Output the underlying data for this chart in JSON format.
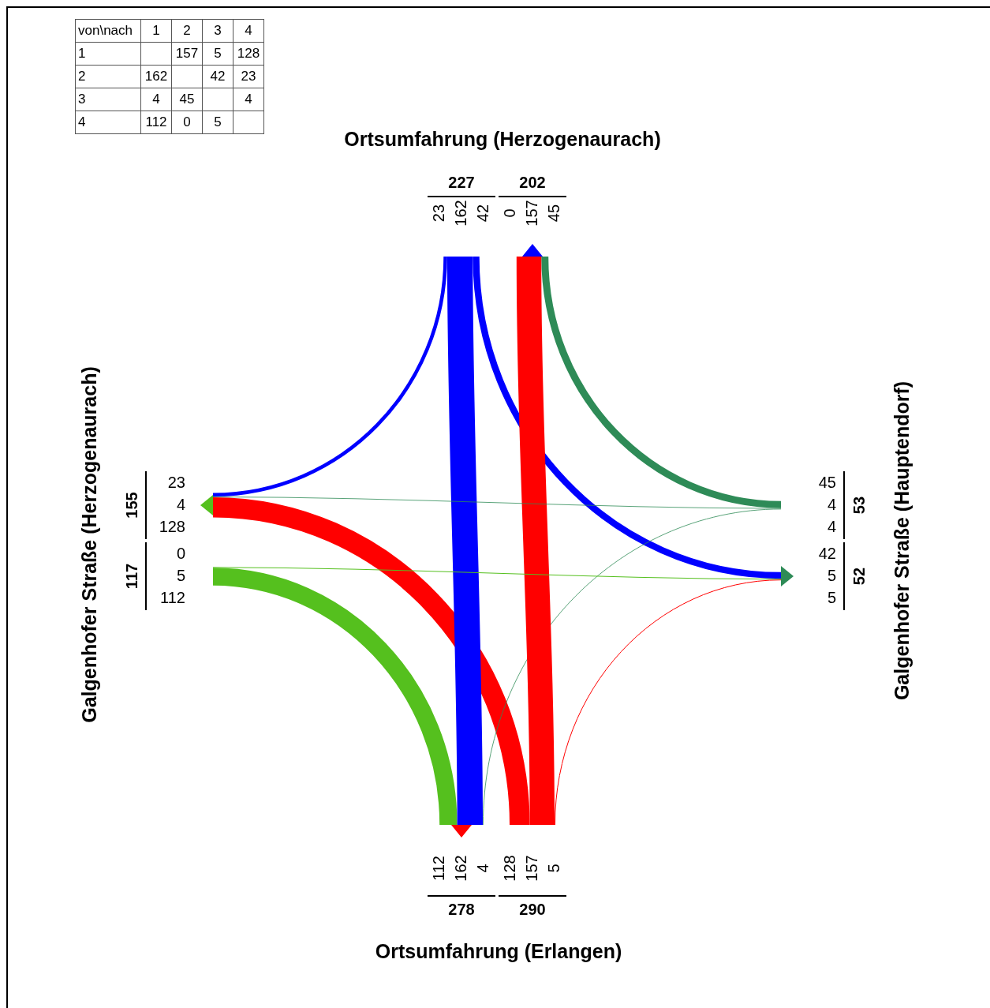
{
  "chart_data": [
    {
      "type": "heatmap",
      "annotations": [
        "von\\nach"
      ],
      "categories": [
        "1",
        "2",
        "3",
        "4"
      ],
      "y_categories": [
        "1",
        "2",
        "3",
        "4"
      ],
      "cells": [
        [
          null,
          157,
          5,
          128
        ],
        [
          162,
          null,
          42,
          23
        ],
        [
          4,
          45,
          null,
          4
        ],
        [
          112,
          0,
          5,
          null
        ]
      ],
      "colors": [
        "#ff0000",
        "#0000ff",
        "#2e8b57",
        "#55c01e"
      ],
      "data_labels": true
    },
    {
      "type": "other",
      "annotations": [
        "Ortsumfahrung (Erlangen)",
        "Ortsumfahrung (Herzogenaurach)",
        "Galgenhofer Straße (Hauptendorf)",
        "Galgenhofer Straße (Herzogenaurach)",
        "5",
        "157",
        "128",
        "112",
        "162",
        "4",
        "23",
        "162",
        "42",
        "45",
        "157",
        "0",
        "45",
        "4",
        "4",
        "5",
        "5",
        "42",
        "112",
        "5",
        "0",
        "23",
        "4",
        "128"
      ],
      "totals": [
        "290",
        "278",
        "227",
        "202",
        "53",
        "52",
        "117",
        "155"
      ]
    }
  ]
}
